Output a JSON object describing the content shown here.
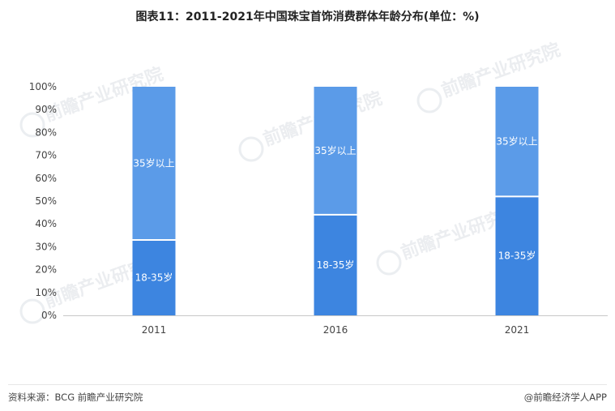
{
  "title": "图表11：2011-2021年中国珠宝首饰消费群体年龄分布(单位：%)",
  "footer": {
    "source": "资料来源：BCG 前瞻产业研究院",
    "credit": "@前瞻经济学人APP"
  },
  "watermark": "前瞻产业研究院",
  "colors": {
    "series_18_35": "#3d85e0",
    "series_35_plus": "#5b9be8",
    "axis": "#c8c8c8",
    "label": "#ffffff"
  },
  "chart_data": {
    "type": "bar",
    "stacked": true,
    "percent": true,
    "title": "图表11：2011-2021年中国珠宝首饰消费群体年龄分布(单位：%)",
    "categories": [
      "2011",
      "2016",
      "2021"
    ],
    "series": [
      {
        "name": "18-35岁",
        "values": [
          33,
          44,
          52
        ]
      },
      {
        "name": "35岁以上",
        "values": [
          67,
          56,
          48
        ]
      }
    ],
    "ylim": [
      0,
      100
    ],
    "yticks": [
      "0%",
      "10%",
      "20%",
      "30%",
      "40%",
      "50%",
      "60%",
      "70%",
      "80%",
      "90%",
      "100%"
    ],
    "grid": false,
    "legend": "none"
  }
}
